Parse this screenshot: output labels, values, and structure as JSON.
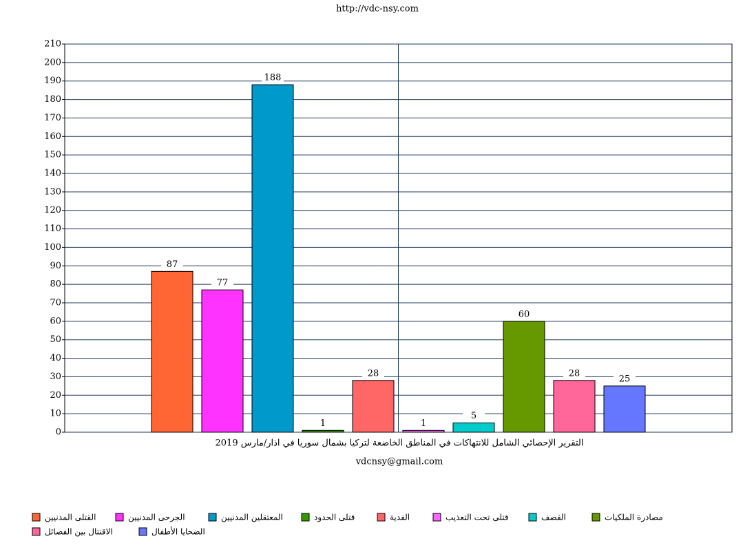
{
  "chart_data": {
    "type": "bar",
    "title": "http://vdc-nsy.com",
    "categories": [
      "التقرير الإحصائي الشامل للانتهاكات في المناطق الخاضعة لتركيا بشمال سوريا في  اذار/مارس 2019"
    ],
    "x_label": "vdcnsy@gmail.com",
    "ylim": [
      0,
      210
    ],
    "yticks": [
      0,
      10,
      20,
      30,
      40,
      50,
      60,
      70,
      80,
      90,
      100,
      110,
      120,
      130,
      140,
      150,
      160,
      170,
      180,
      190,
      200,
      210
    ],
    "grid": true,
    "legend": "bottom",
    "series": [
      {
        "name": "القتلى المدنيين",
        "color": "#ff6633",
        "values": [
          87
        ]
      },
      {
        "name": "الجرحى المدنيين",
        "color": "#ff33ff",
        "values": [
          77
        ]
      },
      {
        "name": "المعتقلين المدنيين",
        "color": "#0099cc",
        "values": [
          188
        ]
      },
      {
        "name": "قتلى الحدود",
        "color": "#339900",
        "values": [
          1
        ]
      },
      {
        "name": "الفدية",
        "color": "#ff6666",
        "values": [
          28
        ]
      },
      {
        "name": "قتلى تحت التعذيب",
        "color": "#ff66ff",
        "values": [
          1
        ]
      },
      {
        "name": "القصف",
        "color": "#00cccc",
        "values": [
          5
        ]
      },
      {
        "name": "مصادرة الملكيات",
        "color": "#669900",
        "values": [
          60
        ]
      },
      {
        "name": "الاقتتال بين الفصائل",
        "color": "#ff6699",
        "values": [
          28
        ]
      },
      {
        "name": "الضحايا الأطفال",
        "color": "#6677ff",
        "values": [
          25
        ]
      }
    ]
  }
}
